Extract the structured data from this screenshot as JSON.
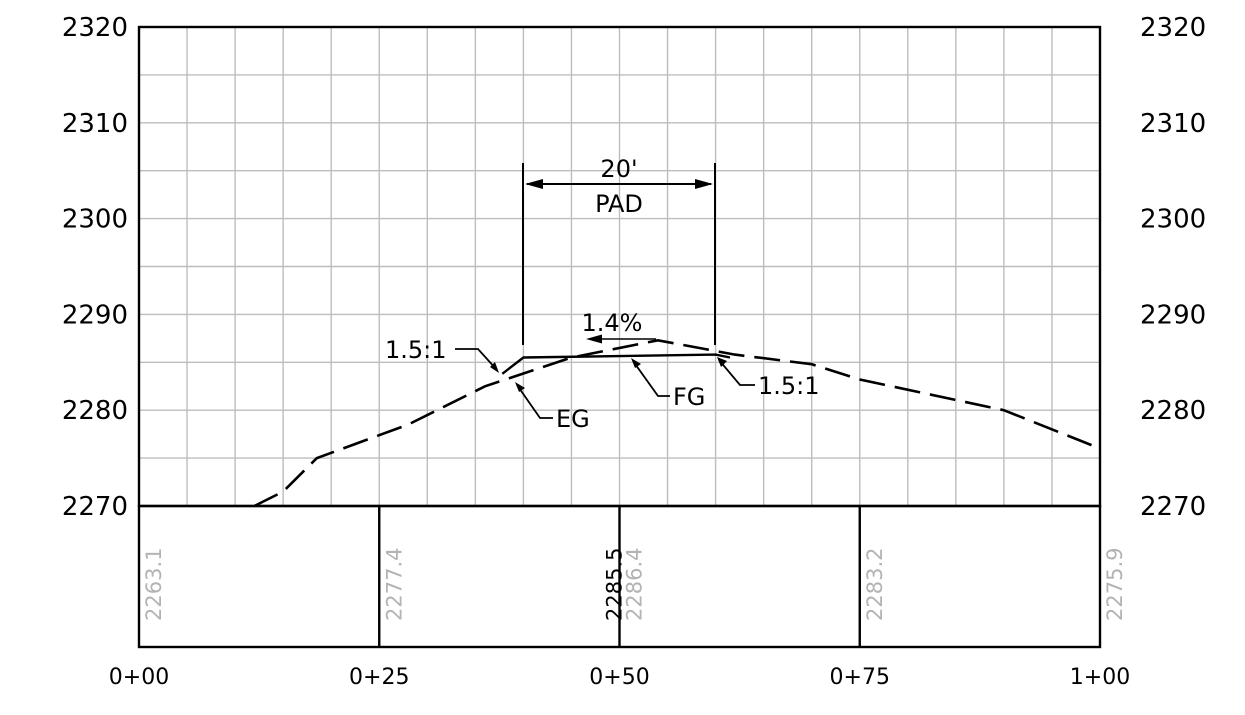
{
  "elevation_axis": {
    "min": 2270,
    "max": 2320,
    "step": 10,
    "minor_step": 5,
    "tick_labels": [
      "2270",
      "2280",
      "2290",
      "2300",
      "2310",
      "2320"
    ]
  },
  "station_axis": {
    "min": 0,
    "max": 100,
    "minor_step": 5,
    "tick_labels": [
      "0+00",
      "0+25",
      "0+50",
      "0+75",
      "1+00"
    ],
    "tick_values": [
      0,
      25,
      50,
      75,
      100
    ]
  },
  "eg_profile": {
    "label": "EG",
    "points": [
      [
        12,
        2270
      ],
      [
        15,
        2271.5
      ],
      [
        18.5,
        2275
      ],
      [
        28,
        2278.5
      ],
      [
        36,
        2282.5
      ],
      [
        45,
        2285.5
      ],
      [
        54,
        2287.3
      ],
      [
        62,
        2285.8
      ],
      [
        70,
        2284.8
      ],
      [
        75,
        2283.2
      ],
      [
        90,
        2280
      ],
      [
        100,
        2276
      ]
    ]
  },
  "fg_profile": {
    "label": "FG",
    "pad_start_station": 40,
    "pad_start_elev": 2285.5,
    "pad_end_station": 60,
    "pad_end_elev": 2285.8,
    "left_slope_toe": [
      37.8,
      2283.8
    ],
    "right_slope_toe": [
      61.5,
      2285.5
    ]
  },
  "annotations": {
    "pad_width": "20'",
    "pad_name": "PAD",
    "grade": "1.4%",
    "left_slope": "1.5:1",
    "right_slope": "1.5:1",
    "eg_label": "EG",
    "fg_label": "FG"
  },
  "band": {
    "eg_values": [
      {
        "station": 0,
        "text": "2263.1"
      },
      {
        "station": 25,
        "text": "2277.4"
      },
      {
        "station": 50,
        "text": "2286.4"
      },
      {
        "station": 75,
        "text": "2283.2"
      },
      {
        "station": 100,
        "text": "2275.9"
      }
    ],
    "fg_values": [
      {
        "station": 50,
        "text": "2285.5"
      }
    ],
    "eg_color": "#b3b3b3",
    "fg_color": "#000000"
  }
}
